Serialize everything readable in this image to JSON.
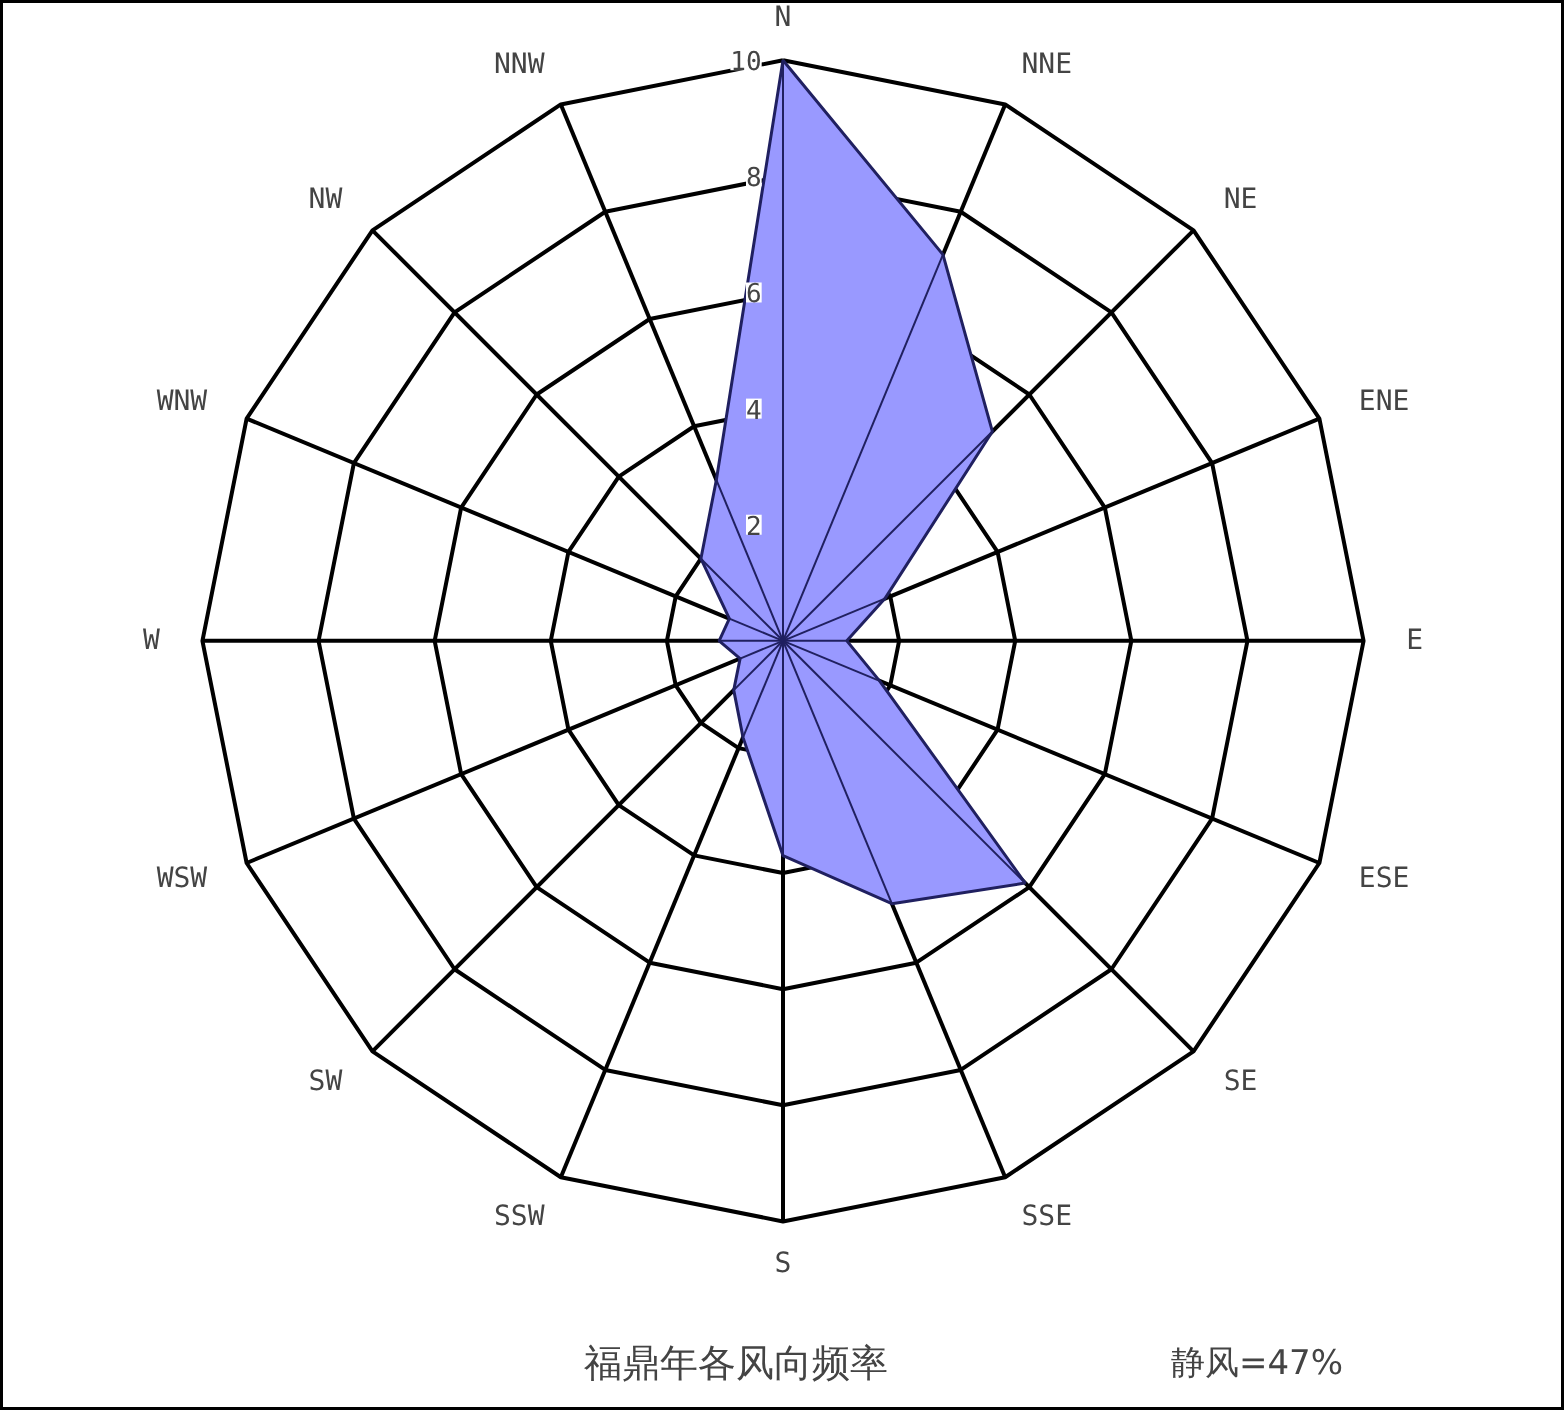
{
  "chart_data": {
    "type": "radar",
    "title": "福鼎年各风向频率",
    "annotations": [
      "静风=47%"
    ],
    "categories": [
      "N",
      "NNE",
      "NE",
      "ENE",
      "E",
      "ESE",
      "SE",
      "SSE",
      "S",
      "SSW",
      "SW",
      "WSW",
      "W",
      "WNW",
      "NW",
      "NNW"
    ],
    "ylim": [
      0,
      10
    ],
    "yticks": [
      2,
      4,
      6,
      8,
      10
    ],
    "grid": true,
    "series": [
      {
        "color": "#9999ff",
        "values": [
          10,
          7.2,
          5.1,
          1.9,
          1.1,
          1.8,
          5.9,
          4.9,
          3.7,
          1.8,
          1.2,
          0.8,
          1.1,
          1.0,
          2.0,
          3.0
        ]
      }
    ]
  }
}
